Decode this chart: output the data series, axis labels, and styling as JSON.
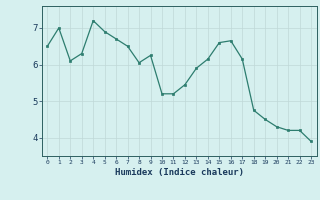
{
  "x": [
    0,
    1,
    2,
    3,
    4,
    5,
    6,
    7,
    8,
    9,
    10,
    11,
    12,
    13,
    14,
    15,
    16,
    17,
    18,
    19,
    20,
    21,
    22,
    23
  ],
  "y": [
    6.5,
    7.0,
    6.1,
    6.3,
    7.2,
    6.9,
    6.7,
    6.5,
    6.05,
    6.25,
    5.2,
    5.2,
    5.45,
    5.9,
    6.15,
    6.6,
    6.65,
    6.15,
    4.75,
    4.5,
    4.3,
    4.2,
    4.2,
    3.9
  ],
  "xlabel": "Humidex (Indice chaleur)",
  "ylim": [
    3.5,
    7.6
  ],
  "xlim": [
    -0.5,
    23.5
  ],
  "yticks": [
    4,
    5,
    6,
    7
  ],
  "xtick_labels": [
    "0",
    "1",
    "2",
    "3",
    "4",
    "5",
    "6",
    "7",
    "8",
    "9",
    "10",
    "11",
    "12",
    "13",
    "14",
    "15",
    "16",
    "17",
    "18",
    "19",
    "20",
    "21",
    "22",
    "23"
  ],
  "line_color": "#2d7d6f",
  "marker_color": "#2d7d6f",
  "bg_color": "#d6f0ef",
  "grid_color": "#c0d8d8",
  "border_color": "#2d6060",
  "xlabel_color": "#1a3a5c"
}
